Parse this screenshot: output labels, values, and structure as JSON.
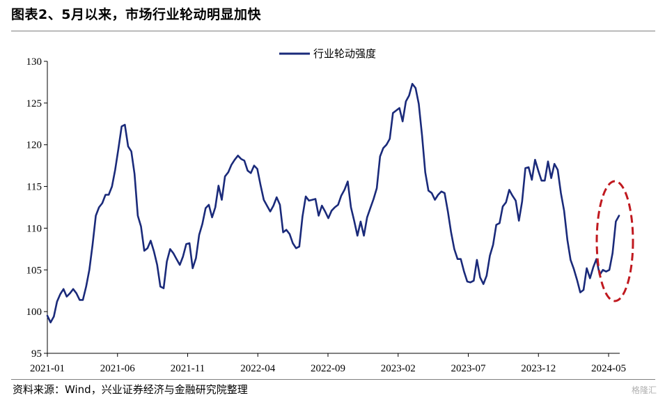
{
  "title": "图表2、5月以来，市场行业轮动明显加快",
  "source": "资料来源：Wind，兴业证券经济与金融研究院整理",
  "watermark": "格隆汇",
  "chart_data": {
    "type": "line",
    "title": "",
    "xlabel": "",
    "ylabel": "",
    "ylim": [
      95,
      130
    ],
    "yticks": [
      95,
      100,
      105,
      110,
      115,
      120,
      125,
      130
    ],
    "xtick_labels": [
      "2021-01",
      "2021-06",
      "2021-11",
      "2022-04",
      "2022-09",
      "2023-02",
      "2023-07",
      "2023-12",
      "2024-05"
    ],
    "legend_position": "top-center",
    "grid": false,
    "line_color": "#1a2a7a",
    "highlight_color": "#c0191f",
    "series": [
      {
        "name": "行业轮动强度",
        "values": [
          99.5,
          98.7,
          99.4,
          101.2,
          102.1,
          102.7,
          101.8,
          102.2,
          102.7,
          102.2,
          101.4,
          101.4,
          103.0,
          105.0,
          108.0,
          111.5,
          112.5,
          113.0,
          114.0,
          114.0,
          115.0,
          117.0,
          119.5,
          122.2,
          122.4,
          119.8,
          119.2,
          116.5,
          111.5,
          110.2,
          107.3,
          107.6,
          108.5,
          107.2,
          105.6,
          103.0,
          102.8,
          106.0,
          107.5,
          107.0,
          106.3,
          105.6,
          106.6,
          108.1,
          108.2,
          105.2,
          106.4,
          109.2,
          110.5,
          112.4,
          112.8,
          111.3,
          112.5,
          115.1,
          113.4,
          116.2,
          116.7,
          117.6,
          118.2,
          118.7,
          118.3,
          118.1,
          116.9,
          116.6,
          117.5,
          117.1,
          115.2,
          113.4,
          112.7,
          112.0,
          112.7,
          113.7,
          112.8,
          109.5,
          109.8,
          109.3,
          108.2,
          107.6,
          107.8,
          111.4,
          113.8,
          113.3,
          113.4,
          113.5,
          111.5,
          112.7,
          112.0,
          111.2,
          112.1,
          112.5,
          112.8,
          113.9,
          114.6,
          115.6,
          112.5,
          110.9,
          109.1,
          110.8,
          109.1,
          111.3,
          112.4,
          113.5,
          114.8,
          118.6,
          119.6,
          120.0,
          120.7,
          123.8,
          124.1,
          124.4,
          122.8,
          125.2,
          125.9,
          127.3,
          126.8,
          124.9,
          121.1,
          116.7,
          114.5,
          114.2,
          113.4,
          114.0,
          114.4,
          114.2,
          112.0,
          109.5,
          107.5,
          106.3,
          106.3,
          104.8,
          103.6,
          103.5,
          103.7,
          106.2,
          104.1,
          103.3,
          104.3,
          106.7,
          108.0,
          110.4,
          110.6,
          112.6,
          113.1,
          114.6,
          113.9,
          113.3,
          110.9,
          113.2,
          117.2,
          117.3,
          115.8,
          118.2,
          116.9,
          115.7,
          115.7,
          118.0,
          116.0,
          117.7,
          117.0,
          114.2,
          112.1,
          108.6,
          106.2,
          105.1,
          103.8,
          102.3,
          102.6,
          105.2,
          104.0,
          105.3,
          106.3,
          104.4,
          105.0,
          104.8,
          105.0,
          107.0,
          110.8,
          111.5
        ]
      }
    ]
  }
}
